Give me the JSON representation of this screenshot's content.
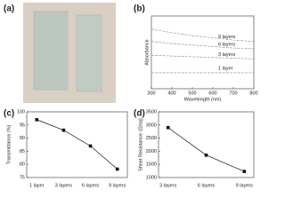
{
  "photo": {
    "label": "(a)"
  },
  "chart_data": [
    {
      "type": "line",
      "label": "(b)",
      "x_label": "Wavelength (nm)",
      "y_label": "Absorbance",
      "x": [
        300,
        400,
        500,
        600,
        700,
        800
      ],
      "xlim": [
        300,
        800
      ],
      "xticks": [
        300,
        400,
        500,
        600,
        700,
        800
      ],
      "ylim": [
        0,
        1
      ],
      "markers": false,
      "series": [
        {
          "name": "9 layers",
          "color": "#888888",
          "values": [
            0.82,
            0.77,
            0.73,
            0.7,
            0.67,
            0.65
          ]
        },
        {
          "name": "6 layers",
          "color": "#888888",
          "values": [
            0.65,
            0.62,
            0.6,
            0.58,
            0.56,
            0.55
          ]
        },
        {
          "name": "3 layers",
          "color": "#888888",
          "values": [
            0.46,
            0.45,
            0.44,
            0.43,
            0.42,
            0.41
          ]
        },
        {
          "name": "1 layer",
          "color": "#888888",
          "values": [
            0.22,
            0.22,
            0.22,
            0.22,
            0.22,
            0.22
          ]
        }
      ]
    },
    {
      "type": "line",
      "label": "(c)",
      "y_label": "Transmittance (%)",
      "categories": [
        "1 layer",
        "3 layers",
        "6 layers",
        "9 layers"
      ],
      "ylim": [
        75,
        100
      ],
      "yticks": [
        75,
        80,
        85,
        90,
        95,
        100
      ],
      "markers": true,
      "series": [
        {
          "color": "#111111",
          "values": [
            97,
            93,
            87,
            78.2
          ]
        }
      ]
    },
    {
      "type": "line",
      "label": "(d)",
      "y_label": "Sheet Resistance (Ω/sq)",
      "categories": [
        "3 layers",
        "6 layers",
        "9 layers"
      ],
      "ylim": [
        1000,
        3500
      ],
      "yticks": [
        1000,
        1500,
        2000,
        2500,
        3000,
        3500
      ],
      "markers": true,
      "series": [
        {
          "color": "#111111",
          "values": [
            2900,
            1850,
            1230
          ]
        }
      ]
    }
  ]
}
